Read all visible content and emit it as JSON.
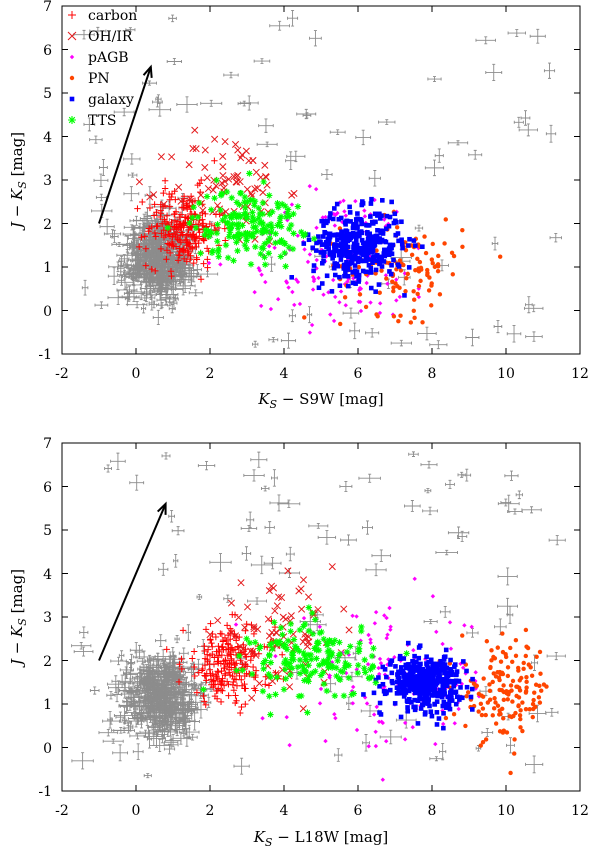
{
  "colors": {
    "carbon": "#ff0000",
    "ohir": "#e41a1c",
    "pagb": "#ff00ff",
    "pn": "#ff4500",
    "galaxy": "#0000ff",
    "tts": "#00ff00",
    "background": "#8c8c8c",
    "axis": "#000000"
  },
  "chart_data": [
    {
      "type": "scatter",
      "xlabel": "K_S − S9W [mag]",
      "ylabel": "J − K_S [mag]",
      "xlabel_parts": {
        "k": "K",
        "s": "S",
        "rest": " − S9W [mag]"
      },
      "ylabel_parts": {
        "j": "J − K",
        "s": "S",
        "rest": " [mag]"
      },
      "xlim": [
        -2,
        12
      ],
      "ylim": [
        -1,
        7
      ],
      "xticks": [
        "-2",
        "0",
        "2",
        "4",
        "6",
        "8",
        "10",
        "12"
      ],
      "yticks": [
        "-1",
        "0",
        "1",
        "2",
        "3",
        "4",
        "5",
        "6",
        "7"
      ],
      "legend_position": "top-left",
      "legend": [
        "carbon",
        "OH/IR",
        "pAGB",
        "PN",
        "galaxy",
        "TTS"
      ],
      "reddening_vector": {
        "from": [
          -1.0,
          2.0
        ],
        "to": [
          0.4,
          5.6
        ]
      },
      "series": [
        {
          "name": "background",
          "cluster": {
            "cx": 0.6,
            "cy": 1.2,
            "sx": 0.8,
            "sy": 0.9,
            "n": 420
          },
          "sparse": {
            "xmin": -1.5,
            "xmax": 11.5,
            "ymin": -0.8,
            "ymax": 6.8,
            "n": 90
          }
        },
        {
          "name": "carbon",
          "cluster": {
            "cx": 1.3,
            "cy": 1.9,
            "sx": 0.9,
            "sy": 0.9,
            "n": 230
          }
        },
        {
          "name": "OH/IR",
          "cluster": {
            "cx": 2.5,
            "cy": 2.8,
            "sx": 1.4,
            "sy": 1.3,
            "n": 80
          }
        },
        {
          "name": "pAGB",
          "cluster": {
            "cx": 5.5,
            "cy": 1.2,
            "sx": 2.4,
            "sy": 1.6,
            "n": 130
          }
        },
        {
          "name": "PN",
          "cluster": {
            "cx": 7.2,
            "cy": 1.0,
            "sx": 1.5,
            "sy": 1.1,
            "n": 120
          }
        },
        {
          "name": "galaxy",
          "cluster": {
            "cx": 6.0,
            "cy": 1.5,
            "sx": 1.1,
            "sy": 0.8,
            "n": 380
          }
        },
        {
          "name": "TTS",
          "cluster": {
            "cx": 3.0,
            "cy": 2.0,
            "sx": 1.3,
            "sy": 0.8,
            "n": 170
          }
        }
      ]
    },
    {
      "type": "scatter",
      "xlabel": "K_S − L18W [mag]",
      "ylabel": "J − K_S [mag]",
      "xlabel_parts": {
        "k": "K",
        "s": "S",
        "rest": " − L18W [mag]"
      },
      "ylabel_parts": {
        "j": "J − K",
        "s": "S",
        "rest": " [mag]"
      },
      "xlim": [
        -2,
        12
      ],
      "ylim": [
        -1,
        7
      ],
      "xticks": [
        "-2",
        "0",
        "2",
        "4",
        "6",
        "8",
        "10",
        "12"
      ],
      "yticks": [
        "-1",
        "0",
        "1",
        "2",
        "3",
        "4",
        "5",
        "6",
        "7"
      ],
      "legend_position": "none",
      "legend": [],
      "reddening_vector": {
        "from": [
          -1.0,
          2.0
        ],
        "to": [
          0.8,
          5.6
        ]
      },
      "series": [
        {
          "name": "background",
          "cluster": {
            "cx": 0.7,
            "cy": 1.2,
            "sx": 0.9,
            "sy": 0.9,
            "n": 420
          },
          "sparse": {
            "xmin": -1.5,
            "xmax": 11.8,
            "ymin": -0.8,
            "ymax": 6.8,
            "n": 100
          }
        },
        {
          "name": "carbon",
          "cluster": {
            "cx": 2.5,
            "cy": 1.9,
            "sx": 1.1,
            "sy": 0.9,
            "n": 230
          }
        },
        {
          "name": "OH/IR",
          "cluster": {
            "cx": 3.8,
            "cy": 2.6,
            "sx": 1.5,
            "sy": 1.1,
            "n": 80
          }
        },
        {
          "name": "pAGB",
          "cluster": {
            "cx": 7.0,
            "cy": 1.5,
            "sx": 2.6,
            "sy": 1.6,
            "n": 130
          }
        },
        {
          "name": "PN",
          "cluster": {
            "cx": 10.0,
            "cy": 1.3,
            "sx": 1.1,
            "sy": 1.1,
            "n": 150
          }
        },
        {
          "name": "galaxy",
          "cluster": {
            "cx": 7.8,
            "cy": 1.5,
            "sx": 0.9,
            "sy": 0.6,
            "n": 400
          }
        },
        {
          "name": "TTS",
          "cluster": {
            "cx": 4.8,
            "cy": 2.0,
            "sx": 1.5,
            "sy": 0.9,
            "n": 170
          }
        }
      ]
    }
  ]
}
